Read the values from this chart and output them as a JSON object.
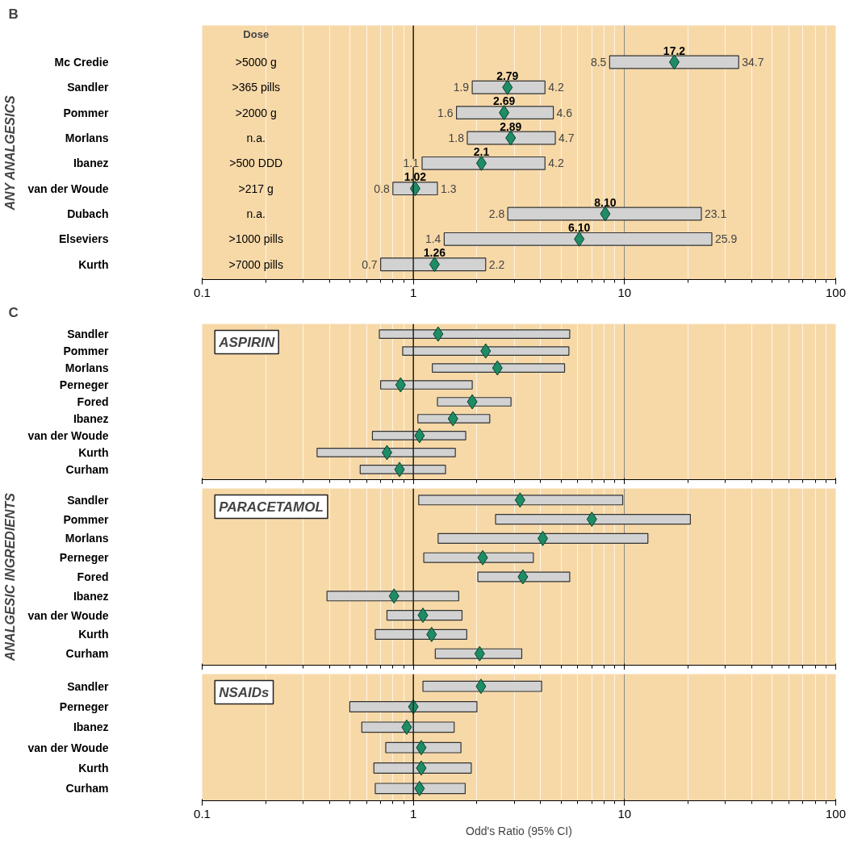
{
  "chart_data": [
    {
      "type": "bar",
      "title": "B",
      "ylabel": "ANY ANALGESICS",
      "orientation": "horizontal",
      "marker": "diamond",
      "grid": "x",
      "categories": [
        "Mc Credie",
        "Sandler",
        "Pommer",
        "Morlans",
        "Ibanez",
        "van der Woude",
        "Dubach",
        "Elseviers",
        "Kurth"
      ],
      "y2_categories": [
        ">5000 g",
        ">365 pills",
        ">2000 g",
        "n.a.",
        ">500 DDD",
        ">217 g",
        "n.a.",
        ">1000 pills",
        ">7000 pills"
      ],
      "series": [
        {
          "color": "#d2d2d2",
          "base": [
            8.5,
            1.9,
            1.6,
            1.8,
            1.1,
            0.8,
            2.8,
            1.4,
            0.7
          ],
          "values": [
            26.2,
            2.3,
            3.0,
            2.9,
            3.1,
            0.5,
            20.3,
            24.5,
            1.5
          ]
        },
        {
          "type": "scatter",
          "color": "#1e8c64",
          "values": [
            17.2,
            2.79,
            2.69,
            2.89,
            2.1,
            1.02,
            8.1,
            6.1,
            1.26
          ],
          "value_labels": [
            "17.2",
            "2.79",
            "2.69",
            "2.89",
            "2.1",
            "1.02",
            "8.10",
            "6.10",
            "1.26"
          ]
        }
      ],
      "annotations": [
        "Dose",
        {
          "text": "8.5",
          "x": 8.5,
          "y": "Mc Credie"
        },
        {
          "text": "34.7",
          "x": 34.7,
          "y": "Mc Credie"
        },
        {
          "text": "1.9",
          "x": 1.9,
          "y": "Sandler"
        },
        {
          "text": "4.2",
          "x": 4.2,
          "y": "Sandler"
        },
        {
          "text": "1.6",
          "x": 1.6,
          "y": "Pommer"
        },
        {
          "text": "4.6",
          "x": 4.6,
          "y": "Pommer"
        },
        {
          "text": "1.8",
          "x": 1.8,
          "y": "Morlans"
        },
        {
          "text": "4.7",
          "x": 4.7,
          "y": "Morlans"
        },
        {
          "text": "1.1",
          "x": 1.1,
          "y": "Ibanez"
        },
        {
          "text": "4.2",
          "x": 4.2,
          "y": "Ibanez"
        },
        {
          "text": "0.8",
          "x": 0.8,
          "y": "van der Woude"
        },
        {
          "text": "1.3",
          "x": 1.3,
          "y": "van der Woude"
        },
        {
          "text": "2.8",
          "x": 2.8,
          "y": "Dubach"
        },
        {
          "text": "23.1",
          "x": 23.1,
          "y": "Dubach"
        },
        {
          "text": "1.4",
          "x": 1.4,
          "y": "Elseviers"
        },
        {
          "text": "25.9",
          "x": 25.9,
          "y": "Elseviers"
        },
        {
          "text": "0.7",
          "x": 0.7,
          "y": "Kurth"
        },
        {
          "text": "2.2",
          "x": 2.2,
          "y": "Kurth"
        }
      ],
      "log": "x",
      "xlim": [
        0.1,
        100
      ],
      "xticks": [
        0.1,
        1,
        10,
        100
      ],
      "ref_lines": [
        {
          "axis": "x",
          "value": 1
        }
      ]
    },
    {
      "type": "bar",
      "title": "C",
      "subtitle": "ASPIRIN",
      "orientation": "horizontal",
      "marker": "diamond",
      "grid": "x",
      "tick_labels": "y",
      "categories": [
        "Sandler",
        "Pommer",
        "Morlans",
        "Perneger",
        "Fored",
        "Ibanez",
        "van der Woude",
        "Kurth",
        "Curham"
      ],
      "series": [
        {
          "color": "#d2d2d2",
          "base": [
            0.69,
            0.89,
            1.23,
            0.7,
            1.3,
            1.05,
            0.64,
            0.35,
            0.56
          ],
          "values": [
            4.81,
            4.56,
            3.97,
            1.2,
            1.6,
            1.25,
            1.13,
            1.23,
            0.86
          ]
        },
        {
          "type": "scatter",
          "color": "#1e8c64",
          "values": [
            1.31,
            2.2,
            2.5,
            0.87,
            1.9,
            1.54,
            1.07,
            0.75,
            0.86
          ]
        }
      ],
      "log": "x",
      "xlim": [
        0.1,
        100
      ],
      "xticks": [
        0.1,
        1,
        10,
        100
      ],
      "ref_lines": [
        {
          "axis": "x",
          "value": 1
        }
      ]
    },
    {
      "type": "bar",
      "subtitle": "PARACETAMOL",
      "ylabel": "ANALGESIC INGREDIENTS",
      "orientation": "horizontal",
      "marker": "diamond",
      "grid": "x",
      "tick_labels": "y",
      "categories": [
        "Sandler",
        "Pommer",
        "Morlans",
        "Perneger",
        "Fored",
        "Ibanez",
        "van der Woude",
        "Kurth",
        "Curham"
      ],
      "series": [
        {
          "color": "#d2d2d2",
          "base": [
            1.06,
            2.45,
            1.31,
            1.12,
            2.02,
            0.39,
            0.75,
            0.66,
            1.27
          ],
          "values": [
            8.74,
            18.05,
            11.59,
            2.58,
            3.48,
            1.25,
            0.95,
            1.13,
            1.99
          ]
        },
        {
          "type": "scatter",
          "color": "#1e8c64",
          "values": [
            3.2,
            7.0,
            4.1,
            2.13,
            3.3,
            0.81,
            1.11,
            1.22,
            2.06
          ]
        }
      ],
      "log": "x",
      "xlim": [
        0.1,
        100
      ],
      "xticks": [
        0.1,
        1,
        10,
        100
      ],
      "ref_lines": [
        {
          "axis": "x",
          "value": 1
        }
      ]
    },
    {
      "type": "bar",
      "subtitle": "NSAIDs",
      "xlabel": "Odd's Ratio (95% CI)",
      "orientation": "horizontal",
      "marker": "diamond",
      "grid": "x",
      "categories": [
        "Sandler",
        "Perneger",
        "Ibanez",
        "van der Woude",
        "Kurth",
        "Curham"
      ],
      "series": [
        {
          "color": "#d2d2d2",
          "base": [
            1.11,
            0.5,
            0.57,
            0.74,
            0.65,
            0.66
          ],
          "values": [
            2.94,
            1.5,
            0.99,
            0.94,
            1.23,
            1.1
          ]
        },
        {
          "type": "scatter",
          "color": "#1e8c64",
          "values": [
            2.09,
            1.0,
            0.93,
            1.09,
            1.09,
            1.07
          ]
        }
      ],
      "log": "x",
      "xlim": [
        0.1,
        100
      ],
      "xticks": [
        0.1,
        1,
        10,
        100
      ],
      "ref_lines": [
        {
          "axis": "x",
          "value": 1
        }
      ]
    }
  ]
}
